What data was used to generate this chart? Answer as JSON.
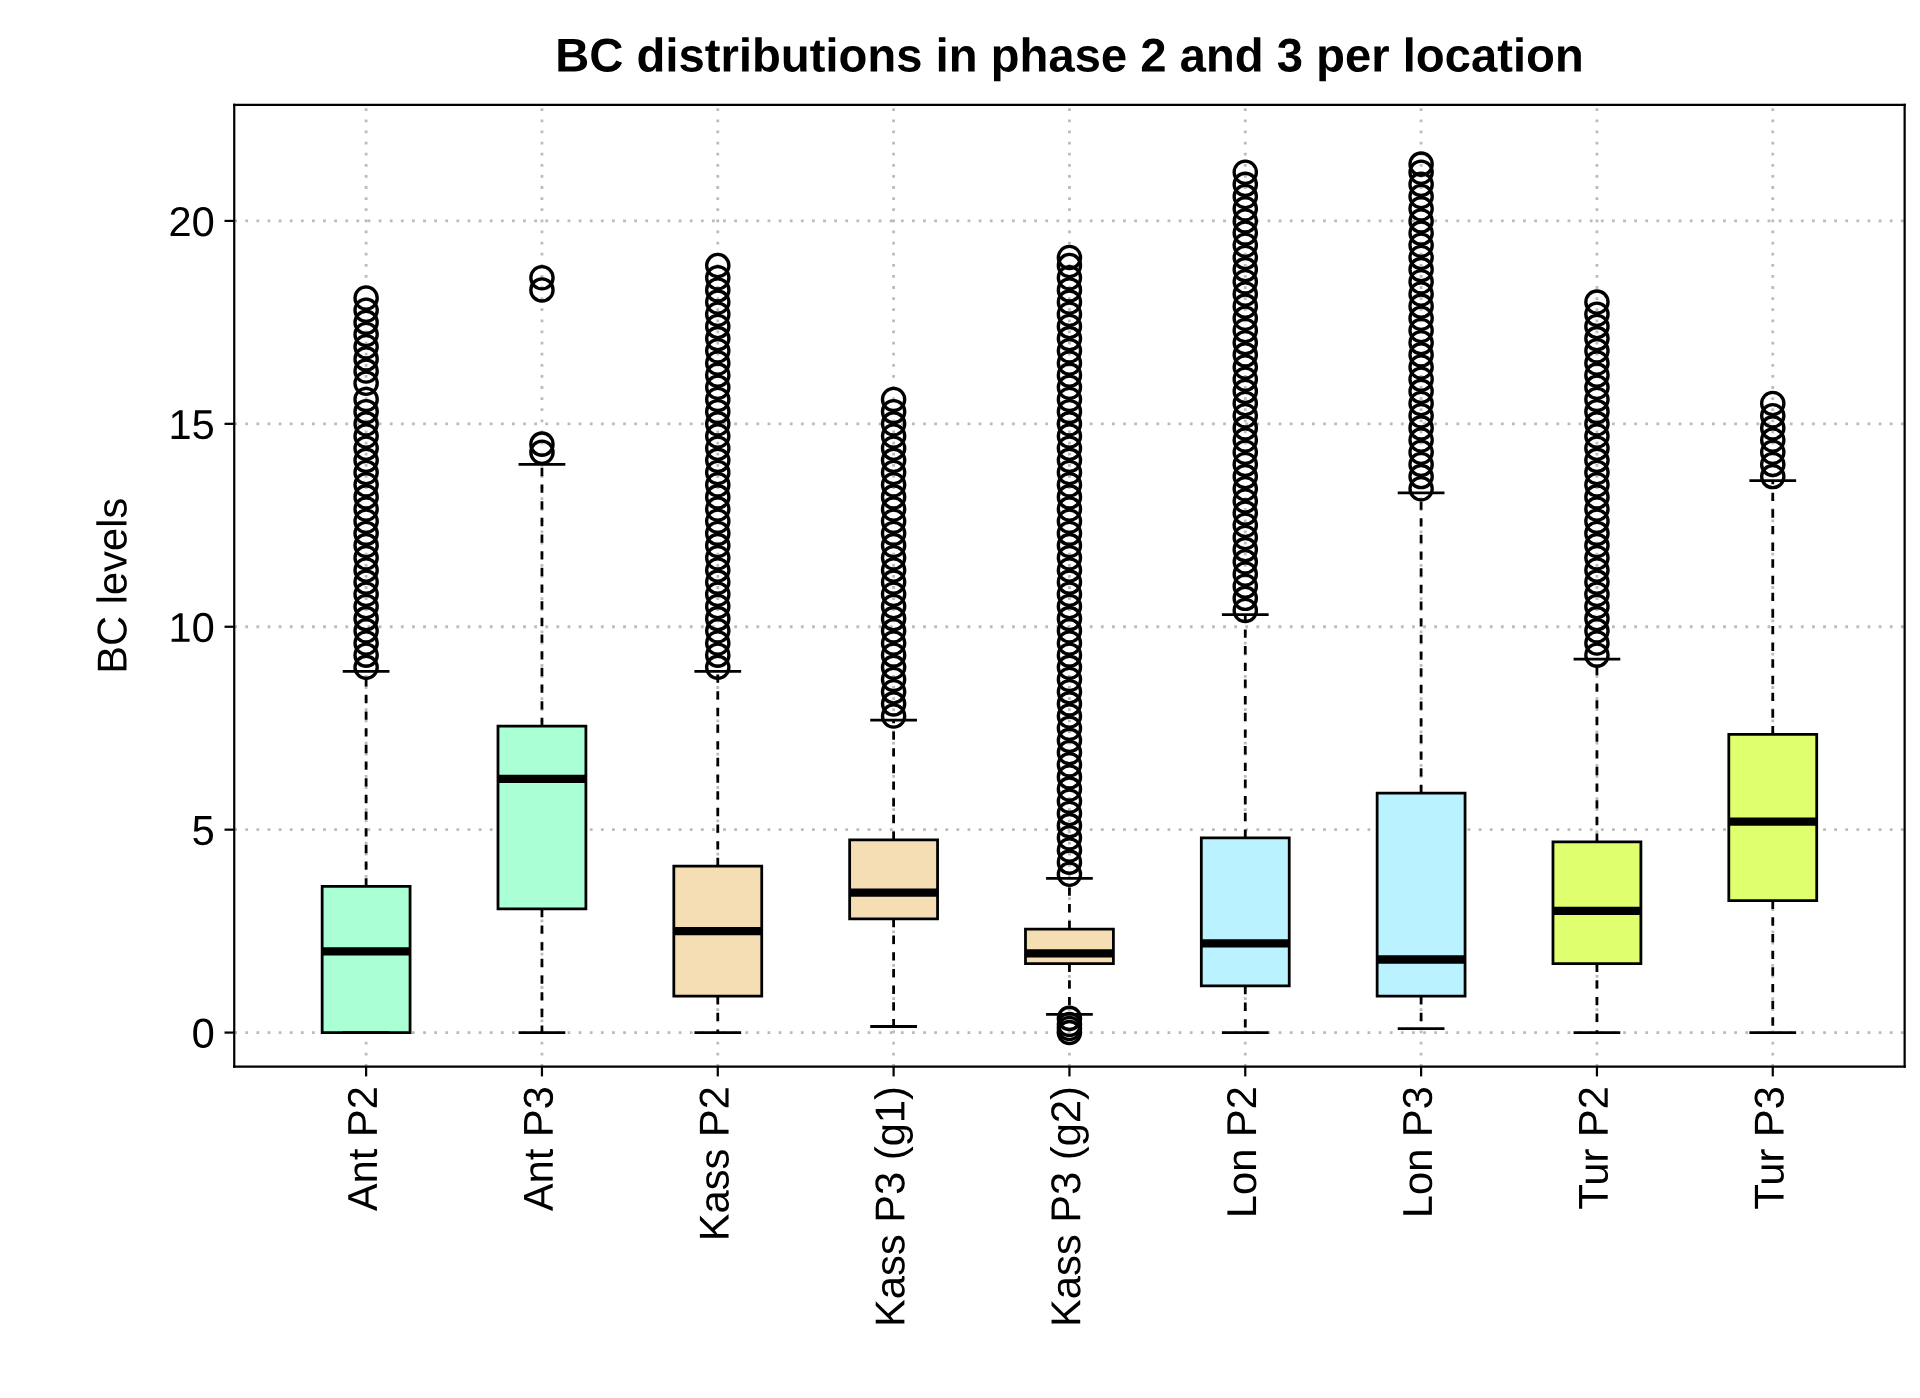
{
  "chart_data": {
    "type": "box",
    "title": "BC distributions in phase 2 and 3 per location",
    "ylabel": "BC levels",
    "categories": [
      "Ant P2",
      "Ant P3",
      "Kass P2",
      "Kass P3 (g1)",
      "Kass P3 (g2)",
      "Lon P2",
      "Lon P3",
      "Tur P2",
      "Tur P3"
    ],
    "colors": [
      "#aaffd4",
      "#aaffd4",
      "#f5deb3",
      "#f5deb3",
      "#f5deb3",
      "#bbf2ff",
      "#bbf2ff",
      "#dfff6f",
      "#dfff6f"
    ],
    "ylim": [
      -0.84,
      22.86
    ],
    "yticks": [
      0,
      5,
      10,
      15,
      20
    ],
    "grid": true,
    "boxes": [
      {
        "low": 0,
        "q1": 0,
        "median": 2.0,
        "q3": 3.6,
        "high": 8.9,
        "outliers": [
          9.0,
          9.3,
          9.6,
          9.9,
          10.2,
          10.5,
          10.8,
          11.1,
          11.4,
          11.7,
          12.0,
          12.3,
          12.6,
          12.9,
          13.2,
          13.5,
          13.8,
          14.1,
          14.4,
          14.7,
          15.0,
          15.3,
          15.6,
          16.0,
          16.3,
          16.6,
          16.9,
          17.2,
          17.5,
          17.8,
          18.1
        ]
      },
      {
        "low": 0,
        "q1": 3.05,
        "median": 6.25,
        "q3": 7.55,
        "high": 14.0,
        "outliers": [
          14.3,
          14.5,
          18.3,
          18.6
        ]
      },
      {
        "low": 0,
        "q1": 0.9,
        "median": 2.5,
        "q3": 4.1,
        "high": 8.9,
        "outliers": [
          9.0,
          9.3,
          9.6,
          9.9,
          10.2,
          10.5,
          10.8,
          11.1,
          11.4,
          11.7,
          12.0,
          12.3,
          12.6,
          12.9,
          13.2,
          13.5,
          13.8,
          14.1,
          14.4,
          14.7,
          15.0,
          15.3,
          15.6,
          15.9,
          16.2,
          16.5,
          16.8,
          17.1,
          17.4,
          17.7,
          18.0,
          18.3,
          18.6,
          18.9
        ]
      },
      {
        "low": 0.15,
        "q1": 2.8,
        "median": 3.45,
        "q3": 4.75,
        "high": 7.7,
        "outliers": [
          7.8,
          8.1,
          8.4,
          8.7,
          9.0,
          9.3,
          9.6,
          9.9,
          10.2,
          10.5,
          10.8,
          11.1,
          11.4,
          11.7,
          12.0,
          12.3,
          12.6,
          12.9,
          13.2,
          13.5,
          13.8,
          14.1,
          14.4,
          14.7,
          15.0,
          15.3,
          15.6
        ]
      },
      {
        "low": 0.45,
        "q1": 1.7,
        "median": 1.95,
        "q3": 2.55,
        "high": 3.8,
        "outliers": [
          0,
          0.1,
          0.2,
          0.35,
          3.9,
          4.2,
          4.5,
          4.8,
          5.1,
          5.4,
          5.7,
          6.0,
          6.3,
          6.6,
          6.9,
          7.2,
          7.5,
          7.8,
          8.1,
          8.4,
          8.7,
          9.0,
          9.3,
          9.6,
          9.9,
          10.2,
          10.5,
          10.8,
          11.1,
          11.4,
          11.7,
          12.0,
          12.3,
          12.6,
          12.9,
          13.2,
          13.5,
          13.8,
          14.1,
          14.4,
          14.7,
          15.0,
          15.3,
          15.6,
          15.9,
          16.2,
          16.5,
          16.8,
          17.1,
          17.4,
          17.7,
          18.0,
          18.3,
          18.6,
          18.9,
          19.1
        ]
      },
      {
        "low": 0,
        "q1": 1.15,
        "median": 2.2,
        "q3": 4.8,
        "high": 10.3,
        "outliers": [
          10.4,
          10.7,
          11.0,
          11.3,
          11.6,
          11.9,
          12.2,
          12.5,
          12.8,
          13.1,
          13.4,
          13.7,
          14.0,
          14.3,
          14.6,
          14.9,
          15.2,
          15.5,
          15.8,
          16.1,
          16.4,
          16.7,
          17.0,
          17.3,
          17.6,
          17.9,
          18.2,
          18.5,
          18.8,
          19.1,
          19.4,
          19.7,
          20.0,
          20.3,
          20.6,
          20.9,
          21.2
        ]
      },
      {
        "low": 0.1,
        "q1": 0.9,
        "median": 1.8,
        "q3": 5.9,
        "high": 13.3,
        "outliers": [
          13.4,
          13.7,
          14.0,
          14.3,
          14.6,
          14.9,
          15.2,
          15.5,
          15.8,
          16.1,
          16.4,
          16.7,
          17.0,
          17.3,
          17.6,
          17.9,
          18.2,
          18.5,
          18.8,
          19.1,
          19.4,
          19.7,
          20.0,
          20.3,
          20.6,
          20.9,
          21.2,
          21.4
        ]
      },
      {
        "low": 0,
        "q1": 1.7,
        "median": 3.0,
        "q3": 4.7,
        "high": 9.2,
        "outliers": [
          9.3,
          9.6,
          9.9,
          10.2,
          10.5,
          10.8,
          11.1,
          11.4,
          11.7,
          12.0,
          12.3,
          12.6,
          12.9,
          13.2,
          13.5,
          13.8,
          14.1,
          14.4,
          14.7,
          15.0,
          15.3,
          15.6,
          15.9,
          16.2,
          16.5,
          16.8,
          17.1,
          17.4,
          17.7,
          18.0
        ]
      },
      {
        "low": 0,
        "q1": 3.25,
        "median": 5.2,
        "q3": 7.35,
        "high": 13.6,
        "outliers": [
          13.7,
          14.0,
          14.3,
          14.6,
          14.9,
          15.2,
          15.5
        ]
      }
    ]
  }
}
